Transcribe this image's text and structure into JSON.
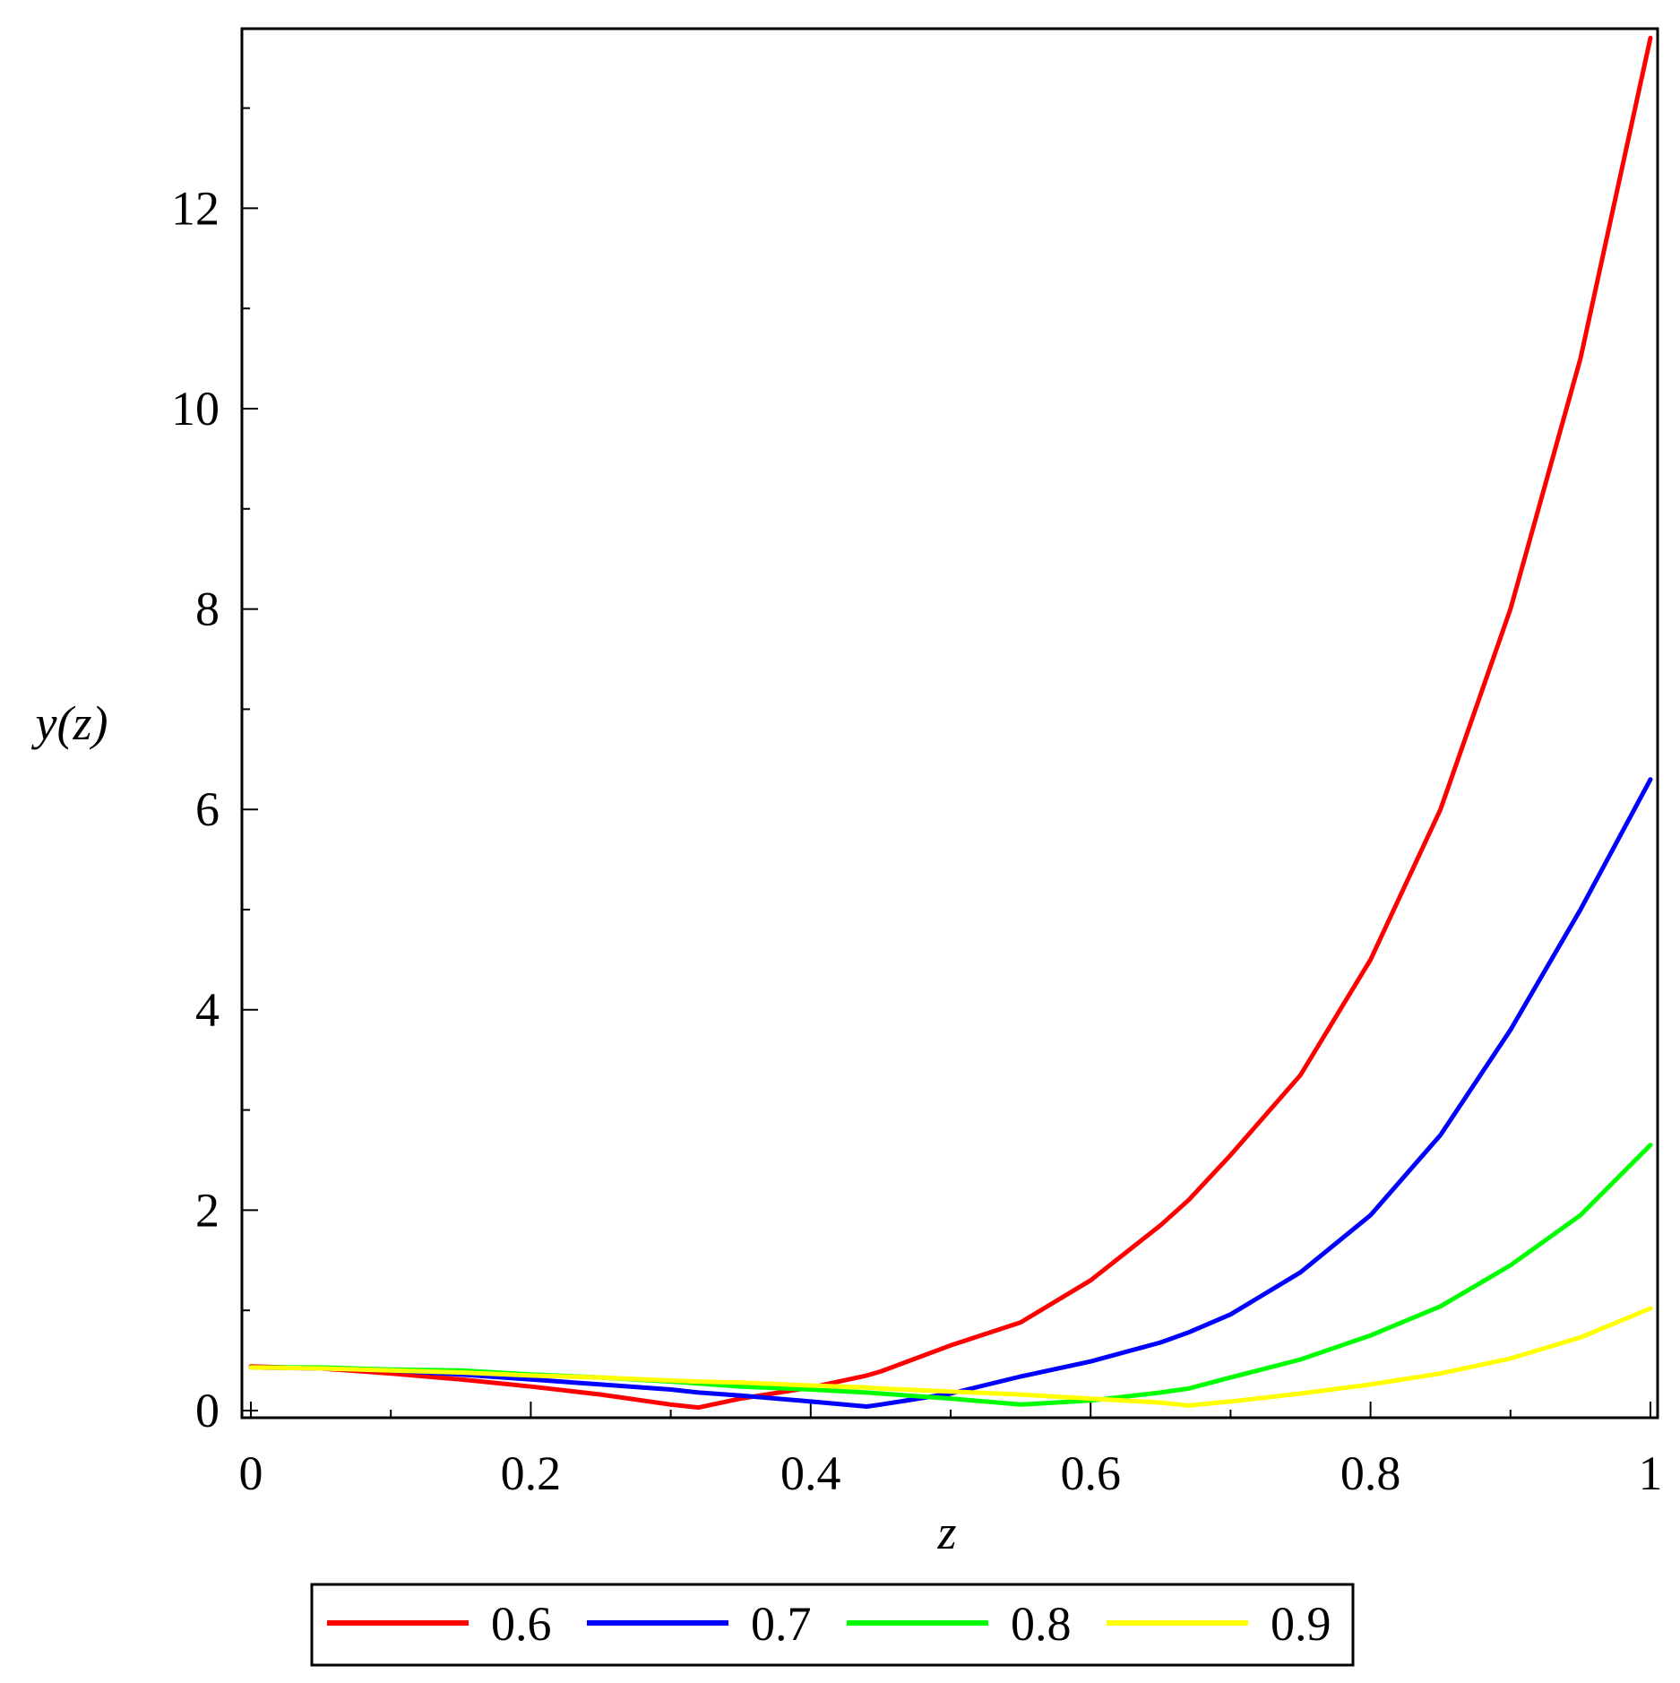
{
  "chart_data": {
    "type": "line",
    "title": "",
    "xlabel": "z",
    "ylabel": "y(z)",
    "xlim": [
      0,
      1
    ],
    "ylim": [
      0,
      13.8
    ],
    "x_ticks": [
      0,
      0.2,
      0.4,
      0.6,
      0.8,
      1
    ],
    "x_tick_labels": [
      "0",
      "0.2",
      "0.4",
      "0.6",
      "0.8",
      "1"
    ],
    "y_ticks": [
      0,
      2,
      4,
      6,
      8,
      10,
      12
    ],
    "y_tick_labels": [
      "0",
      "2",
      "4",
      "6",
      "8",
      "10",
      "12"
    ],
    "grid": false,
    "legend_position": "bottom",
    "x": [
      0,
      0.05,
      0.1,
      0.15,
      0.2,
      0.25,
      0.3,
      0.32,
      0.35,
      0.4,
      0.44,
      0.45,
      0.5,
      0.55,
      0.6,
      0.65,
      0.67,
      0.7,
      0.75,
      0.8,
      0.85,
      0.9,
      0.95,
      1
    ],
    "series": [
      {
        "name": "0.6",
        "color": "#ff0000",
        "values": [
          0.44,
          0.42,
          0.37,
          0.31,
          0.24,
          0.16,
          0.06,
          0.03,
          0.12,
          0.23,
          0.35,
          0.39,
          0.65,
          0.88,
          1.3,
          1.85,
          2.1,
          2.55,
          3.35,
          4.5,
          6.0,
          8.0,
          10.5,
          13.7
        ]
      },
      {
        "name": "0.7",
        "color": "#0000ff",
        "values": [
          0.43,
          0.42,
          0.4,
          0.36,
          0.31,
          0.26,
          0.21,
          0.18,
          0.15,
          0.09,
          0.04,
          0.06,
          0.17,
          0.34,
          0.49,
          0.68,
          0.78,
          0.96,
          1.38,
          1.95,
          2.75,
          3.8,
          5.0,
          6.3
        ]
      },
      {
        "name": "0.8",
        "color": "#00ff00",
        "values": [
          0.43,
          0.43,
          0.41,
          0.4,
          0.36,
          0.33,
          0.29,
          0.27,
          0.24,
          0.21,
          0.18,
          0.17,
          0.12,
          0.06,
          0.1,
          0.18,
          0.22,
          0.33,
          0.51,
          0.75,
          1.04,
          1.45,
          1.95,
          2.65
        ]
      },
      {
        "name": "0.9",
        "color": "#ffff00",
        "values": [
          0.43,
          0.42,
          0.4,
          0.38,
          0.35,
          0.33,
          0.3,
          0.29,
          0.28,
          0.25,
          0.23,
          0.22,
          0.19,
          0.16,
          0.12,
          0.08,
          0.05,
          0.09,
          0.17,
          0.26,
          0.37,
          0.52,
          0.73,
          1.02
        ]
      }
    ]
  }
}
